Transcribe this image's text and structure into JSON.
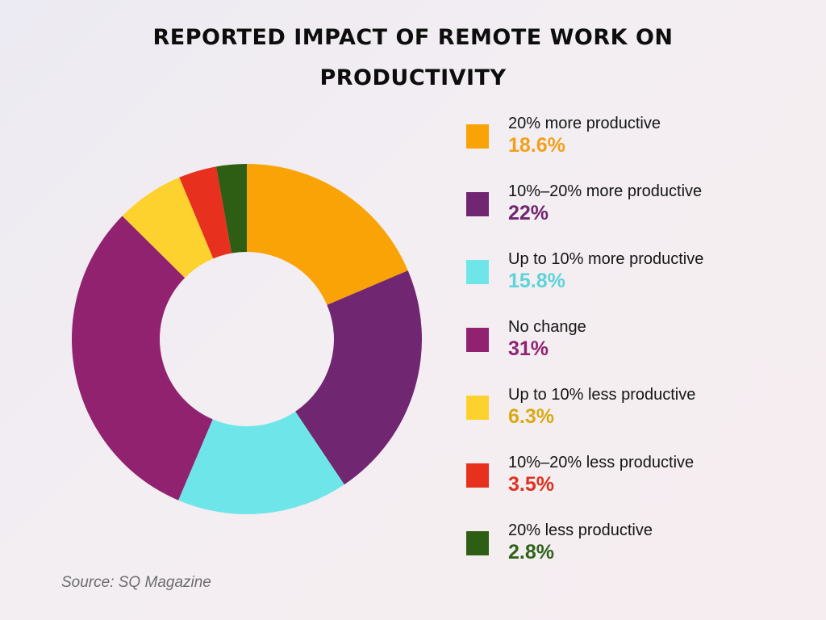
{
  "chart_data": {
    "type": "pie",
    "title": "REPORTED IMPACT OF REMOTE WORK ON PRODUCTIVITY",
    "categories": [
      "20% more productive",
      "10%–20% more productive",
      "Up to 10% more productive",
      "No change",
      "Up to 10% less productive",
      "10%–20% less productive",
      "20% less productive"
    ],
    "values": [
      18.6,
      22,
      15.8,
      31,
      6.3,
      3.5,
      2.8
    ],
    "value_labels": [
      "18.6%",
      "22%",
      "15.8%",
      "31%",
      "6.3%",
      "3.5%",
      "2.8%"
    ],
    "colors": [
      "#FAA307",
      "#702670",
      "#6EE6E9",
      "#912270",
      "#FDD22F",
      "#E8301E",
      "#2E5E14"
    ],
    "label_colors": [
      "#F0A01A",
      "#702670",
      "#5CD4D8",
      "#912270",
      "#D9A912",
      "#E0301E",
      "#2E6418"
    ],
    "legend_position": "right",
    "donut": true
  },
  "source": "Source: SQ Magazine"
}
